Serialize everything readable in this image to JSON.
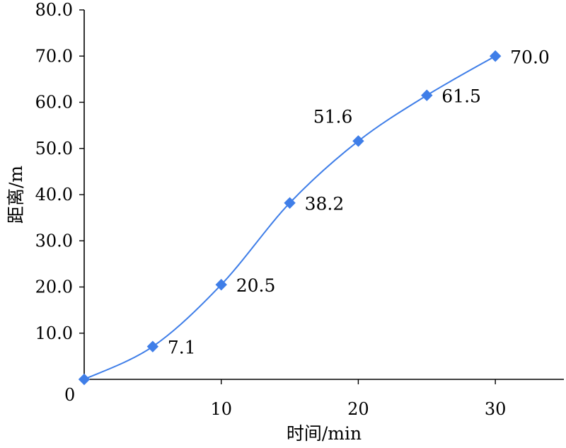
{
  "chart_data": {
    "type": "line",
    "title": "",
    "xlabel": "时间/min",
    "ylabel": "距离/m",
    "x": [
      0,
      5,
      10,
      15,
      20,
      25,
      30
    ],
    "series": [
      {
        "values": [
          0,
          7.1,
          20.5,
          38.2,
          51.6,
          61.5,
          70.0
        ],
        "data_labels": [
          "",
          "7.1",
          "20.5",
          "38.2",
          "51.6",
          "61.5",
          "70.0"
        ]
      }
    ],
    "xlim": [
      0,
      35
    ],
    "ylim": [
      0,
      80
    ],
    "x_ticks": [
      10,
      20,
      30
    ],
    "x_tick_labels": [
      "10",
      "20",
      "30"
    ],
    "y_ticks": [
      10,
      20,
      30,
      40,
      50,
      60,
      70,
      80
    ],
    "y_tick_labels": [
      "10.0",
      "20.0",
      "30.0",
      "40.0",
      "50.0",
      "60.0",
      "70.0",
      "80.0"
    ],
    "origin_label": "0",
    "grid": false,
    "line_style": "smooth",
    "marker": "diamond",
    "colors": {
      "series": "#3f7ee8",
      "axis": "#000000",
      "text": "#000000"
    }
  }
}
